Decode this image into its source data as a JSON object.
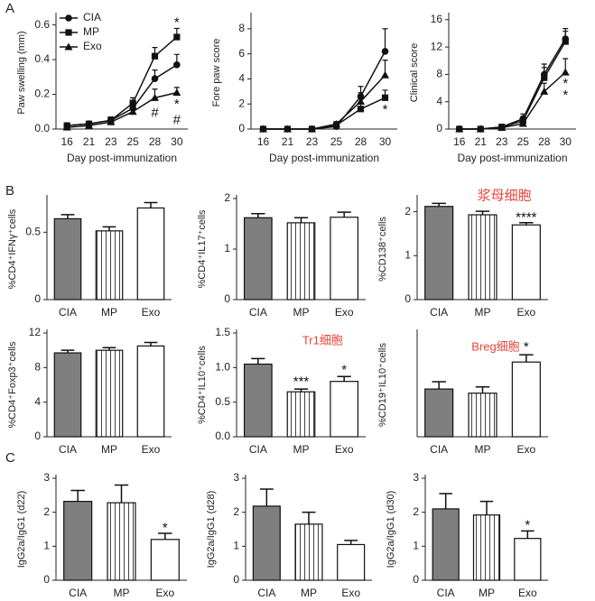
{
  "panel_labels": [
    "A",
    "B",
    "C"
  ],
  "chart_data": [
    {
      "type": "line",
      "ylabel": "Paw swelling (mm)",
      "xlabel": "Day post-immunization",
      "categories": [
        "16",
        "21",
        "23",
        "25",
        "28",
        "30"
      ],
      "ylim": [
        0,
        0.65
      ],
      "yticks": [
        {
          "value": 0,
          "label": "0.0"
        },
        0.2,
        0.4,
        0.6
      ],
      "legend": "upper left",
      "series": [
        {
          "name": "CIA",
          "marker": "circle",
          "color": "#111111",
          "values": [
            0.02,
            0.03,
            0.05,
            0.12,
            0.29,
            0.37
          ],
          "errors": [
            0.01,
            0.01,
            0.02,
            0.03,
            0.05,
            0.06
          ]
        },
        {
          "name": "MP",
          "marker": "square",
          "color": "#111111",
          "values": [
            0.02,
            0.03,
            0.05,
            0.15,
            0.42,
            0.53
          ],
          "errors": [
            0.01,
            0.01,
            0.02,
            0.03,
            0.05,
            0.05
          ]
        },
        {
          "name": "Exo",
          "marker": "triangle",
          "color": "#111111",
          "values": [
            0.01,
            0.02,
            0.04,
            0.1,
            0.18,
            0.21
          ],
          "errors": [
            0.01,
            0.01,
            0.02,
            0.03,
            0.05,
            0.03
          ]
        }
      ],
      "annotations": [
        {
          "text": "*",
          "color": "#111111"
        },
        {
          "text": "#",
          "color": "#111111"
        },
        {
          "text": "*",
          "color": "#111111"
        },
        {
          "text": "#",
          "color": "#111111"
        }
      ]
    },
    {
      "type": "line",
      "ylabel": "Fore paw score",
      "xlabel": "Day post-immunization",
      "categories": [
        "16",
        "21",
        "23",
        "25",
        "28",
        "30"
      ],
      "ylim": [
        0,
        9
      ],
      "yticks": [
        0,
        2,
        4,
        6,
        8
      ],
      "series": [
        {
          "marker": "circle",
          "color": "#111111",
          "values": [
            0,
            0,
            0,
            0.2,
            2.6,
            6.2
          ],
          "errors": [
            0,
            0,
            0,
            0.2,
            0.8,
            1.8
          ]
        },
        {
          "marker": "square",
          "color": "#111111",
          "values": [
            0,
            0,
            0,
            0.3,
            1.6,
            2.5
          ],
          "errors": [
            0,
            0,
            0,
            0.2,
            0.5,
            0.6
          ]
        },
        {
          "marker": "triangle",
          "color": "#111111",
          "values": [
            0,
            0,
            0,
            0.4,
            2.2,
            4.3
          ],
          "errors": [
            0,
            0,
            0,
            0.2,
            0.7,
            1.2
          ]
        }
      ],
      "annotations": [
        {
          "text": "*",
          "color": "#111111"
        }
      ]
    },
    {
      "type": "line",
      "ylabel": "Clinical score",
      "xlabel": "Day post-immunization",
      "categories": [
        "16",
        "21",
        "23",
        "25",
        "28",
        "30"
      ],
      "ylim": [
        0,
        16.5
      ],
      "yticks": [
        0,
        4,
        8,
        12,
        16
      ],
      "series": [
        {
          "marker": "circle",
          "color": "#111111",
          "values": [
            0,
            0,
            0.3,
            1.5,
            8,
            13.2
          ],
          "errors": [
            0,
            0,
            0.2,
            0.7,
            1.5,
            1.5
          ]
        },
        {
          "marker": "square",
          "color": "#111111",
          "values": [
            0,
            0,
            0.3,
            1.2,
            7.5,
            12.8
          ],
          "errors": [
            0,
            0,
            0.2,
            0.6,
            1.5,
            1.5
          ]
        },
        {
          "marker": "triangle",
          "color": "#111111",
          "values": [
            0,
            0,
            0.2,
            0.8,
            5.5,
            8.3
          ],
          "errors": [
            0,
            0,
            0.2,
            0.5,
            1.2,
            2
          ]
        }
      ],
      "annotations": [
        {
          "text": "*",
          "color": "#111111"
        },
        {
          "text": "*",
          "color": "#111111"
        }
      ]
    },
    {
      "type": "bar",
      "ylabel": "%CD4⁺IFNγ⁺cells",
      "categories": [
        "CIA",
        "MP",
        "Exo"
      ],
      "ylim": [
        0,
        0.75
      ],
      "yticks": [
        0,
        0.5
      ],
      "values": [
        0.6,
        0.51,
        0.68
      ],
      "errors": [
        0.03,
        0.03,
        0.04
      ],
      "colors": [
        "#7f7f7f",
        "#ffffff",
        "#ffffff"
      ],
      "hatch": [
        false,
        true,
        false
      ],
      "annotations": []
    },
    {
      "type": "bar",
      "ylabel": "%CD4⁺IL17⁺cells",
      "categories": [
        "CIA",
        "MP",
        "Exo"
      ],
      "ylim": [
        0,
        2
      ],
      "yticks": [
        0,
        1,
        2
      ],
      "values": [
        1.62,
        1.52,
        1.63
      ],
      "errors": [
        0.08,
        0.1,
        0.1
      ],
      "colors": [
        "#7f7f7f",
        "#ffffff",
        "#ffffff"
      ],
      "hatch": [
        false,
        true,
        false
      ],
      "annotations": []
    },
    {
      "type": "bar",
      "ylabel": "%CD138⁺cells",
      "categories": [
        "CIA",
        "MP",
        "Exo"
      ],
      "ylim": [
        0,
        2.3
      ],
      "yticks": [
        0,
        1,
        2
      ],
      "values": [
        2.12,
        1.93,
        1.7
      ],
      "errors": [
        0.07,
        0.08,
        0.05
      ],
      "colors": [
        "#7f7f7f",
        "#ffffff",
        "#ffffff"
      ],
      "hatch": [
        false,
        true,
        false
      ],
      "annotations": [
        {
          "text": "浆母细胞",
          "color": "#e8443a"
        },
        {
          "text": "****",
          "color": "#111111"
        }
      ]
    },
    {
      "type": "bar",
      "ylabel": "%CD4⁺Foxp3⁺cells",
      "categories": [
        "CIA",
        "MP",
        "Exo"
      ],
      "ylim": [
        0,
        12
      ],
      "yticks": [
        0,
        4,
        8,
        12
      ],
      "values": [
        9.7,
        10.0,
        10.5
      ],
      "errors": [
        0.3,
        0.3,
        0.4
      ],
      "colors": [
        "#7f7f7f",
        "#ffffff",
        "#ffffff"
      ],
      "hatch": [
        false,
        true,
        false
      ],
      "annotations": []
    },
    {
      "type": "bar",
      "ylabel": "%CD4⁺IL10⁺cells",
      "categories": [
        "CIA",
        "MP",
        "Exo"
      ],
      "ylim": [
        0,
        1.5
      ],
      "yticks": [
        {
          "value": 0,
          "label": "0.0"
        },
        0.5,
        {
          "value": 1,
          "label": "1.0"
        },
        1.5
      ],
      "values": [
        1.05,
        0.65,
        0.8
      ],
      "errors": [
        0.08,
        0.04,
        0.07
      ],
      "colors": [
        "#7f7f7f",
        "#ffffff",
        "#ffffff"
      ],
      "hatch": [
        false,
        true,
        false
      ],
      "annotations": [
        {
          "text": "Tr1细胞",
          "color": "#e8443a"
        },
        {
          "text": "***",
          "color": "#111111"
        },
        {
          "text": "*",
          "color": "#111111"
        }
      ]
    },
    {
      "type": "bar",
      "ylabel": "%CD19⁺IL10⁺cells",
      "categories": [
        "CIA",
        "MP",
        "Exo"
      ],
      "ylim": [
        0,
        1
      ],
      "yticks": [],
      "values": [
        0.46,
        0.42,
        0.72
      ],
      "errors": [
        0.07,
        0.06,
        0.07
      ],
      "colors": [
        "#7f7f7f",
        "#ffffff",
        "#ffffff"
      ],
      "hatch": [
        false,
        true,
        false
      ],
      "annotations": [
        {
          "text": "Breg细胞",
          "color": "#e8443a"
        },
        {
          "text": "*",
          "color": "#111111"
        }
      ]
    },
    {
      "type": "bar",
      "ylabel": "IgG2a/IgG1 (d22)",
      "categories": [
        "CIA",
        "MP",
        "Exo"
      ],
      "ylim": [
        0,
        3
      ],
      "yticks": [
        0,
        1,
        2,
        3
      ],
      "values": [
        2.32,
        2.28,
        1.2
      ],
      "errors": [
        0.32,
        0.52,
        0.18
      ],
      "colors": [
        "#7f7f7f",
        "#ffffff",
        "#ffffff"
      ],
      "hatch": [
        false,
        true,
        false
      ],
      "annotations": [
        {
          "text": "*",
          "color": "#111111"
        }
      ]
    },
    {
      "type": "bar",
      "ylabel": "IgG2a/IgG1 (d28)",
      "categories": [
        "CIA",
        "MP",
        "Exo"
      ],
      "ylim": [
        0,
        3
      ],
      "yticks": [
        0,
        1,
        2,
        3
      ],
      "values": [
        2.18,
        1.65,
        1.05
      ],
      "errors": [
        0.5,
        0.35,
        0.12
      ],
      "colors": [
        "#7f7f7f",
        "#ffffff",
        "#ffffff"
      ],
      "hatch": [
        false,
        true,
        false
      ],
      "annotations": []
    },
    {
      "type": "bar",
      "ylabel": "IgG2a/IgG1 (d30)",
      "categories": [
        "CIA",
        "MP",
        "Exo"
      ],
      "ylim": [
        0,
        3
      ],
      "yticks": [
        0,
        1,
        2,
        3
      ],
      "values": [
        2.1,
        1.92,
        1.23
      ],
      "errors": [
        0.45,
        0.4,
        0.22
      ],
      "colors": [
        "#7f7f7f",
        "#ffffff",
        "#ffffff"
      ],
      "hatch": [
        false,
        true,
        false
      ],
      "annotations": [
        {
          "text": "*",
          "color": "#111111"
        }
      ]
    }
  ]
}
